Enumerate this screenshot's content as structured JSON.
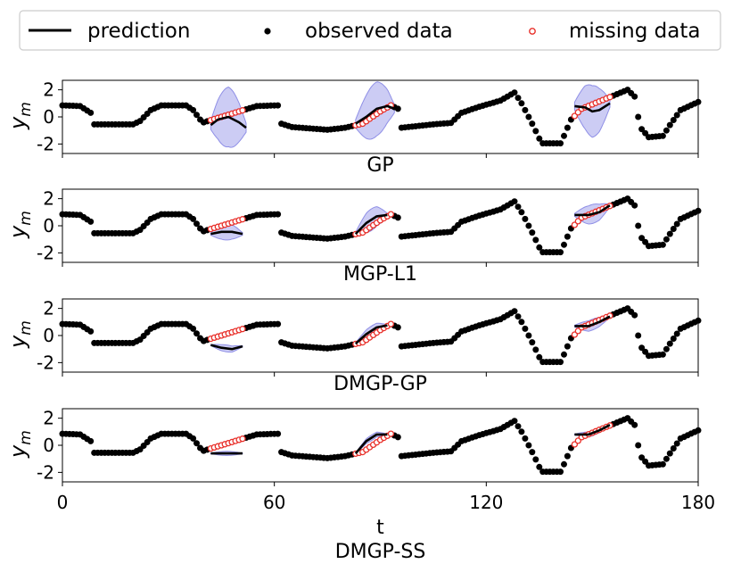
{
  "legend": {
    "prediction": "prediction",
    "observed": "observed data",
    "missing": "missing data"
  },
  "colors": {
    "prediction": "#000000",
    "observed": "#000000",
    "missing": "#e8302a",
    "band": "#8f8fe6"
  },
  "chart_data": {
    "type": "scatter",
    "x_domain": [
      0,
      180
    ],
    "y_range": [
      -2.7,
      2.7
    ],
    "xticks": [
      "0",
      "60",
      "120",
      "180"
    ],
    "xlabel": "t",
    "ylabel_base": "y",
    "ylabel_sub": "m",
    "yticks": [
      "2",
      "0",
      "-2"
    ],
    "observed_signal": {
      "description_free_values": [
        [
          0,
          0.85
        ],
        [
          5,
          0.8
        ],
        [
          8,
          0.3
        ],
        [
          9,
          -0.55
        ],
        [
          20,
          -0.55
        ],
        [
          22,
          -0.3
        ],
        [
          25,
          0.5
        ],
        [
          28,
          0.85
        ],
        [
          35,
          0.85
        ],
        [
          37,
          0.5
        ],
        [
          39,
          -0.2
        ],
        [
          40,
          -0.4
        ],
        [
          55,
          0.8
        ],
        [
          61,
          0.85
        ],
        [
          62,
          -0.5
        ],
        [
          65,
          -0.75
        ],
        [
          75,
          -0.95
        ],
        [
          80,
          -0.8
        ],
        [
          85,
          -0.5
        ],
        [
          90,
          0.4
        ],
        [
          93,
          0.85
        ],
        [
          95,
          0.6
        ],
        [
          96,
          -0.8
        ],
        [
          105,
          -0.55
        ],
        [
          110,
          -0.45
        ],
        [
          113,
          0.3
        ],
        [
          118,
          0.75
        ],
        [
          124,
          1.2
        ],
        [
          128,
          1.8
        ],
        [
          130,
          1.0
        ],
        [
          133,
          -0.5
        ],
        [
          135,
          -1.6
        ],
        [
          136,
          -1.95
        ],
        [
          141,
          -1.95
        ],
        [
          142,
          -1.4
        ],
        [
          144,
          -0.2
        ],
        [
          147,
          0.6
        ],
        [
          160,
          2.0
        ],
        [
          162,
          1.5
        ],
        [
          163,
          0.0
        ],
        [
          164,
          -0.9
        ],
        [
          166,
          -1.5
        ],
        [
          170,
          -1.4
        ],
        [
          172,
          -0.6
        ],
        [
          175,
          0.5
        ],
        [
          180,
          1.1
        ]
      ]
    },
    "missing_segments": [
      [
        42,
        51
      ],
      [
        83,
        93
      ],
      [
        145,
        155
      ]
    ],
    "panels": [
      {
        "title": "GP",
        "series": [
          {
            "name": "prediction",
            "segments": [
              [
                [
                  42,
                  -0.6
                ],
                [
                  44,
                  -0.2
                ],
                [
                  47,
                  0.0
                ],
                [
                  50,
                  -0.4
                ],
                [
                  52,
                  -0.8
                ]
              ],
              [
                [
                  83,
                  -0.5
                ],
                [
                  86,
                  0.0
                ],
                [
                  89,
                  0.6
                ],
                [
                  92,
                  0.8
                ],
                [
                  94,
                  0.6
                ]
              ],
              [
                [
                  145,
                  0.8
                ],
                [
                  148,
                  0.7
                ],
                [
                  150,
                  0.4
                ],
                [
                  152,
                  0.5
                ],
                [
                  155,
                  1.0
                ]
              ]
            ]
          },
          {
            "name": "band",
            "widths": [
              2.2,
              2.0,
              1.9
            ]
          }
        ]
      },
      {
        "title": "MGP-L1",
        "series": [
          {
            "name": "prediction",
            "segments": [
              [
                [
                  42,
                  -0.6
                ],
                [
                  45,
                  -0.45
                ],
                [
                  48,
                  -0.45
                ],
                [
                  51,
                  -0.6
                ]
              ],
              [
                [
                  83,
                  -0.6
                ],
                [
                  86,
                  0.2
                ],
                [
                  89,
                  0.7
                ],
                [
                  92,
                  0.8
                ]
              ],
              [
                [
                  145,
                  0.8
                ],
                [
                  149,
                  0.8
                ],
                [
                  152,
                  1.0
                ],
                [
                  155,
                  1.5
                ]
              ]
            ]
          },
          {
            "name": "band",
            "widths": [
              0.6,
              0.8,
              0.7
            ]
          }
        ]
      },
      {
        "title": "DMGP-GP",
        "series": [
          {
            "name": "prediction",
            "segments": [
              [
                [
                  42,
                  -0.7
                ],
                [
                  45,
                  -0.9
                ],
                [
                  48,
                  -1.0
                ],
                [
                  51,
                  -0.8
                ]
              ],
              [
                [
                  83,
                  -0.6
                ],
                [
                  86,
                  0.1
                ],
                [
                  89,
                  0.6
                ],
                [
                  92,
                  0.75
                ]
              ],
              [
                [
                  145,
                  0.7
                ],
                [
                  149,
                  0.7
                ],
                [
                  152,
                  1.0
                ],
                [
                  155,
                  1.4
                ]
              ]
            ]
          },
          {
            "name": "band",
            "widths": [
              0.25,
              0.35,
              0.4
            ]
          }
        ]
      },
      {
        "title": "DMGP-SS",
        "series": [
          {
            "name": "prediction",
            "segments": [
              [
                [
                  42,
                  -0.6
                ],
                [
                  45,
                  -0.6
                ],
                [
                  48,
                  -0.6
                ],
                [
                  51,
                  -0.6
                ]
              ],
              [
                [
                  83,
                  -0.6
                ],
                [
                  86,
                  0.3
                ],
                [
                  89,
                  0.8
                ],
                [
                  92,
                  0.8
                ]
              ],
              [
                [
                  145,
                  0.8
                ],
                [
                  149,
                  0.8
                ],
                [
                  152,
                  1.1
                ],
                [
                  155,
                  1.5
                ]
              ]
            ]
          },
          {
            "name": "band",
            "widths": [
              0.15,
              0.2,
              0.2
            ]
          }
        ]
      }
    ]
  }
}
